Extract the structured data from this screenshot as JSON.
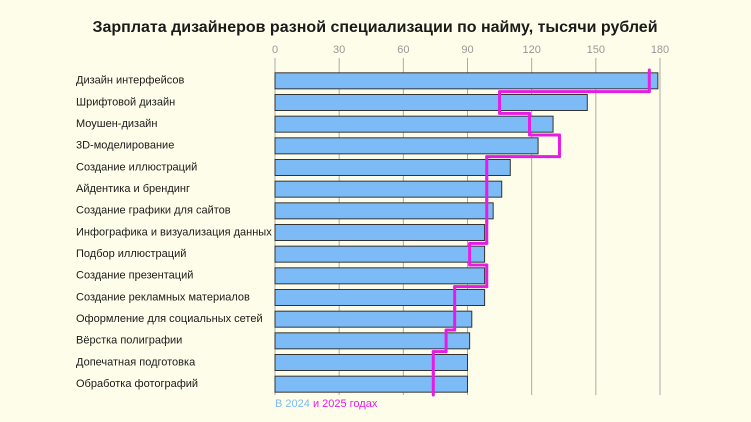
{
  "chart_data": {
    "type": "bar",
    "orientation": "horizontal",
    "title": "Зарплата дизайнеров разной специализации по найму, тысячи рублей",
    "categories": [
      "Дизайн интерфейсов",
      "Шрифтовой дизайн",
      "Моушен-дизайн",
      "3D-моделирование",
      "Создание иллюстраций",
      "Айдентика и брендинг",
      "Создание графики для сайтов",
      "Инфографика и визуализация данных",
      "Подбор иллюстраций",
      "Создание презентаций",
      "Создание рекламных материалов",
      "Оформление для социальных сетей",
      "Вёрстка полиграфии",
      "Допечатная подготовка",
      "Обработка фотографий"
    ],
    "series": [
      {
        "name": "В 2024",
        "type": "bar",
        "color": "#7dbbf7",
        "values": [
          179,
          146,
          130,
          123,
          110,
          106,
          102,
          98,
          98,
          98,
          98,
          92,
          91,
          90,
          90
        ]
      },
      {
        "name": "и 2025 годах",
        "type": "step",
        "color": "#e61be6",
        "values": [
          175,
          105,
          119,
          133,
          99,
          99,
          99,
          99,
          91,
          99,
          84,
          84,
          80,
          74,
          74
        ]
      }
    ],
    "xlim": [
      0,
      180
    ],
    "xticks": [
      0,
      30,
      60,
      90,
      120,
      150,
      180
    ],
    "grid": true
  }
}
